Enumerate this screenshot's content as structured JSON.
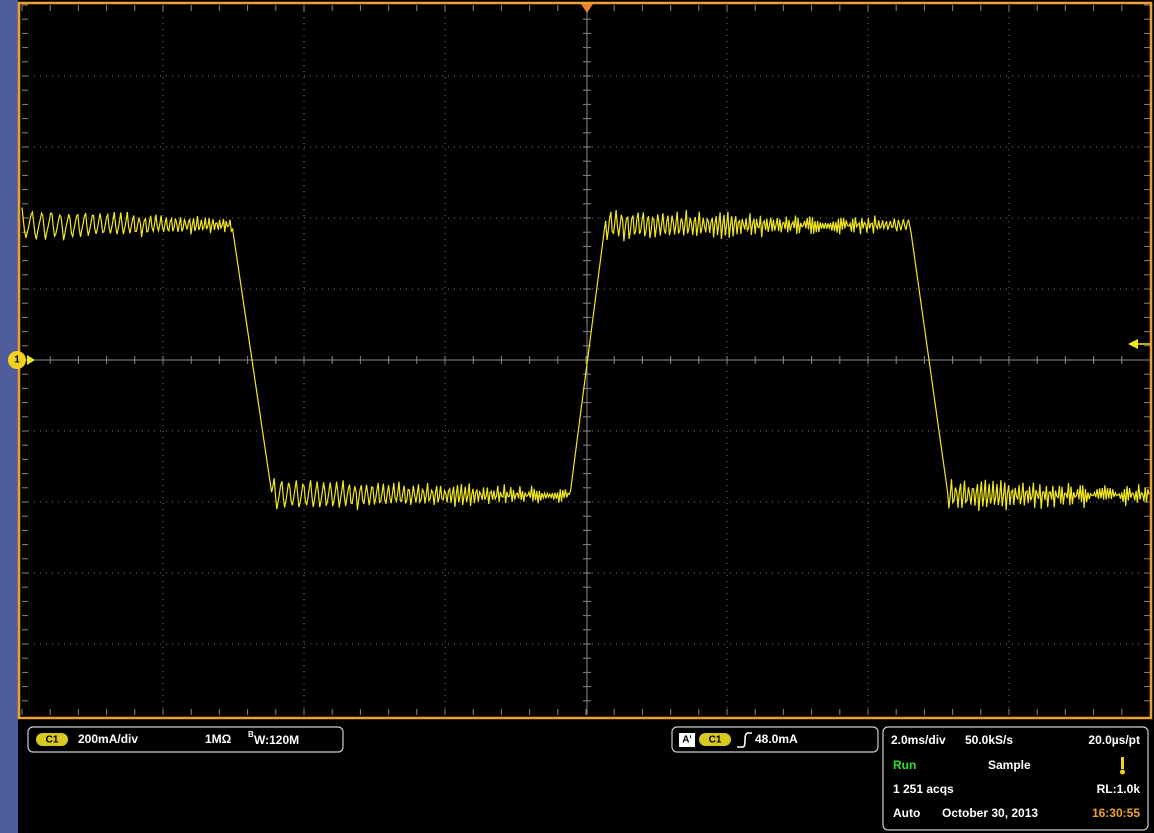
{
  "channel_marker": "1",
  "channel_box": {
    "channel": "C1",
    "scale": "200mA/div",
    "impedance": "1MΩ",
    "bandwidth_prefix": "B",
    "bandwidth": "W:120M"
  },
  "trigger_box": {
    "source_tag": "A'",
    "channel": "C1",
    "level": "48.0mA"
  },
  "acquisition_box": {
    "timebase": "2.0ms/div",
    "sample_rate": "50.0kS/s",
    "resolution": "20.0µs/pt",
    "state": "Run",
    "mode": "Sample",
    "acquisitions": "1 251 acqs",
    "record_length": "RL:1.0k",
    "trigger_mode": "Auto",
    "date": "October 30, 2013",
    "time": "16:30:55"
  }
}
